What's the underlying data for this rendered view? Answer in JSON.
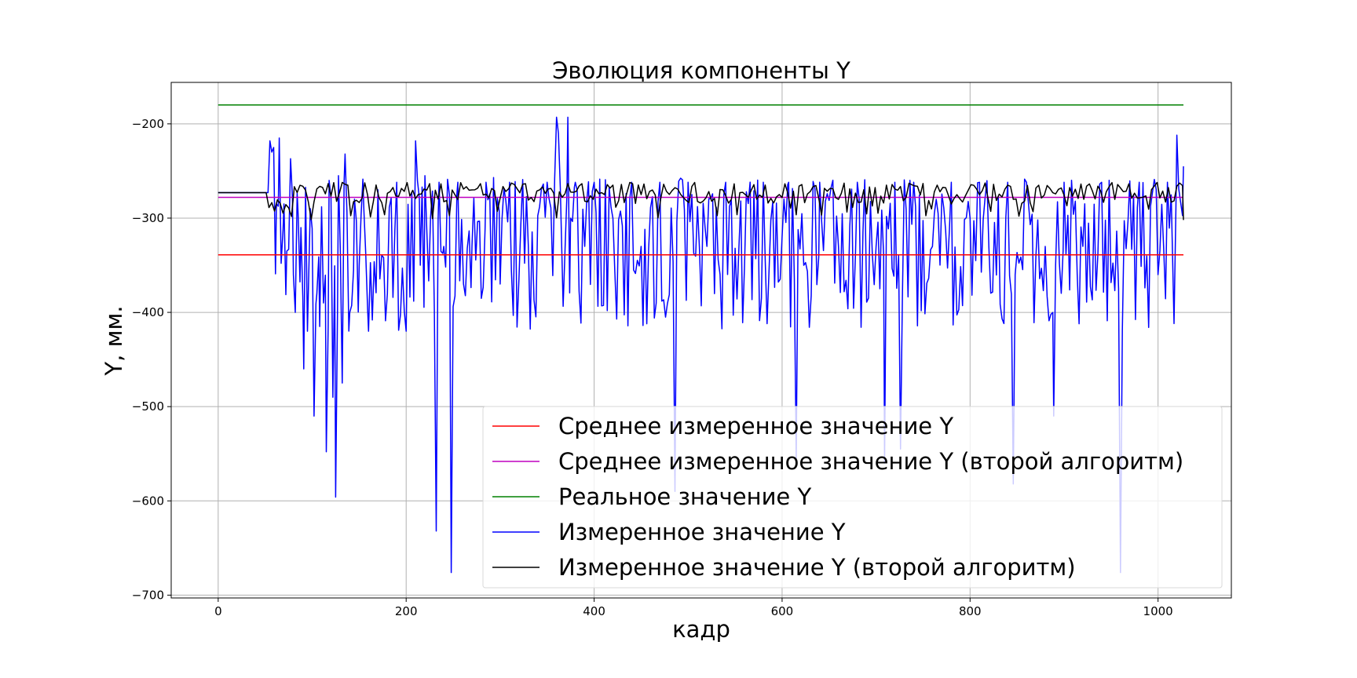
{
  "chart_data": {
    "type": "line",
    "title": "Эволюция компоненты Y",
    "xlabel": "кадр",
    "ylabel": "Y, мм.",
    "xlim": [
      -50,
      1078
    ],
    "ylim": [
      -703,
      -156
    ],
    "x_ticks": [
      0,
      200,
      400,
      600,
      800,
      1000
    ],
    "y_ticks": [
      -200,
      -300,
      -400,
      -500,
      -600,
      -700
    ],
    "grid": true,
    "legend_position": "lower right",
    "series": [
      {
        "name": "Среднее измеренное значение Y",
        "color": "#ff0000",
        "kind": "constant",
        "x": [
          0,
          1027
        ],
        "y": [
          -339,
          -339
        ]
      },
      {
        "name": "Среднее измеренное значение Y (второй алгоритм)",
        "color": "#bf00bf",
        "kind": "constant",
        "x": [
          0,
          1027
        ],
        "y": [
          -278,
          -278
        ]
      },
      {
        "name": "Реальное значение Y",
        "color": "#008000",
        "kind": "constant",
        "x": [
          0,
          1027
        ],
        "y": [
          -180,
          -180
        ]
      },
      {
        "name": "Измеренное значение Y",
        "color": "#0000ff",
        "kind": "measured",
        "x": [
          0,
          53,
          55,
          57,
          59,
          62,
          65,
          67,
          70,
          73,
          77,
          80,
          82,
          85,
          88,
          91,
          95,
          98,
          102,
          105,
          108,
          112,
          115,
          118,
          122,
          125,
          128,
          132,
          135,
          140,
          145,
          150,
          155,
          160,
          170,
          180,
          190,
          200,
          210,
          215,
          220,
          232,
          235,
          240,
          248,
          255,
          270,
          285,
          300,
          310,
          330,
          350,
          360,
          362,
          365,
          372,
          375,
          380,
          390,
          400,
          420,
          440,
          450,
          470,
          486,
          500,
          520,
          540,
          560,
          580,
          600,
          607,
          615,
          640,
          660,
          680,
          700,
          709,
          720,
          726,
          740,
          760,
          780,
          800,
          810,
          820,
          840,
          846,
          860,
          880,
          889,
          900,
          920,
          940,
          960,
          980,
          1000,
          1010,
          1015,
          1020,
          1027
        ],
        "y": [
          -273,
          -273,
          -218,
          -230,
          -225,
          -285,
          -215,
          -348,
          -285,
          -335,
          -237,
          -360,
          -400,
          -295,
          -310,
          -460,
          -420,
          -290,
          -510,
          -380,
          -415,
          -390,
          -548,
          -260,
          -490,
          -596,
          -255,
          -475,
          -232,
          -400,
          -280,
          -350,
          -290,
          -420,
          -270,
          -380,
          -262,
          -420,
          -218,
          -350,
          -255,
          -632,
          -262,
          -330,
          -676,
          -262,
          -330,
          -262,
          -370,
          -262,
          -330,
          -262,
          -193,
          -210,
          -310,
          -193,
          -300,
          -262,
          -330,
          -262,
          -300,
          -262,
          -330,
          -262,
          -590,
          -262,
          -330,
          -262,
          -350,
          -262,
          -320,
          -262,
          -555,
          -262,
          -330,
          -262,
          -330,
          -560,
          -262,
          -545,
          -262,
          -330,
          -262,
          -300,
          -262,
          -330,
          -262,
          -582,
          -262,
          -330,
          -510,
          -262,
          -330,
          -262,
          -676,
          -262,
          -360,
          -262,
          -320,
          -212,
          -245
        ]
      },
      {
        "name": "Измеренное значение Y (второй алгоритм)",
        "color": "#000000",
        "kind": "measured",
        "x": [
          0,
          1027
        ],
        "y": [
          -263,
          -302
        ]
      }
    ]
  }
}
